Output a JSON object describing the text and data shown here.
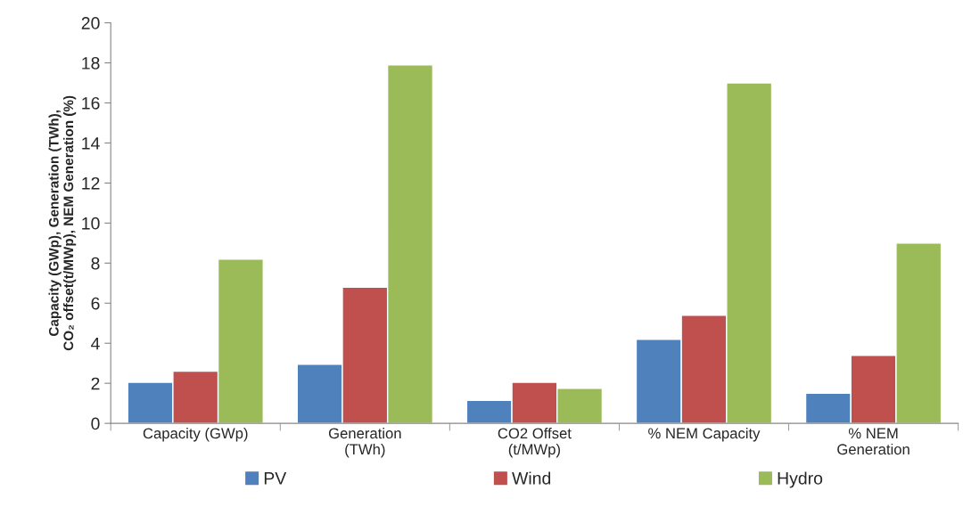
{
  "chart_data": {
    "type": "bar",
    "ylabel": "Capacity (GWp), Generation (TWh),\nCO₂ offset(t/MWp), NEM Generation (%)",
    "categories": [
      "Capacity (GWp)",
      "Generation\n(TWh)",
      "CO2 Offset\n(t/MWp)",
      "% NEM Capacity",
      "% NEM\nGeneration"
    ],
    "series": [
      {
        "name": "PV",
        "color": "#4f81bd",
        "values": [
          2.05,
          2.95,
          1.15,
          4.2,
          1.5
        ]
      },
      {
        "name": "Wind",
        "color": "#c0504d",
        "values": [
          2.6,
          6.8,
          2.05,
          5.4,
          3.4
        ]
      },
      {
        "name": "Hydro",
        "color": "#9bbb59",
        "values": [
          8.2,
          17.9,
          1.75,
          17.0,
          9.0
        ]
      }
    ],
    "ylim": [
      0,
      20
    ],
    "yticks": [
      0,
      2,
      4,
      6,
      8,
      10,
      12,
      14,
      16,
      18,
      20
    ],
    "grid": false,
    "legend": "bottom"
  }
}
